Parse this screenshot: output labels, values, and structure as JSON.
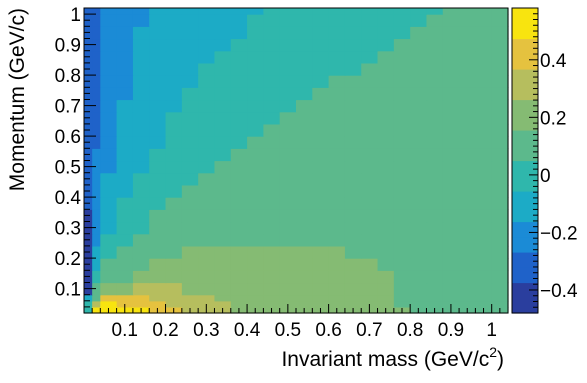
{
  "chart_data": {
    "type": "heatmap",
    "title": "",
    "xlabel": "Invariant mass (GeV/c",
    "xlabel_sup": "2",
    "xlabel_end": ")",
    "ylabel": "Momentum (GeV/c)",
    "x_ticks": [
      "0.1",
      "0.2",
      "0.3",
      "0.4",
      "0.5",
      "0.6",
      "0.7",
      "0.8",
      "0.9",
      "1"
    ],
    "y_ticks": [
      "0.1",
      "0.2",
      "0.3",
      "0.4",
      "0.5",
      "0.6",
      "0.7",
      "0.8",
      "0.9",
      "1"
    ],
    "colorbar_ticks": [
      "0.4",
      "0.2",
      "0",
      "−0.2",
      "−0.4"
    ],
    "xlim": [
      0,
      1.04
    ],
    "ylim": [
      0.02,
      1.02
    ],
    "zlim": [
      -0.48,
      0.58
    ],
    "colorbar_position": "right",
    "grid": false,
    "x_bin_edges": [
      0,
      0.02,
      0.04,
      0.08,
      0.12,
      0.16,
      0.2,
      0.24,
      0.28,
      0.32,
      0.36,
      0.4,
      0.44,
      0.48,
      0.52,
      0.56,
      0.6,
      0.64,
      0.68,
      0.72,
      0.76,
      0.8,
      0.84,
      0.88,
      0.92,
      0.96,
      1.0,
      1.04
    ],
    "y_bin_edges": [
      0.02,
      0.04,
      0.06,
      0.08,
      0.12,
      0.16,
      0.2,
      0.24,
      0.28,
      0.32,
      0.36,
      0.4,
      0.44,
      0.48,
      0.52,
      0.56,
      0.6,
      0.64,
      0.68,
      0.72,
      0.76,
      0.8,
      0.84,
      0.88,
      0.92,
      0.96,
      1.0,
      1.02
    ],
    "z": [
      [
        0.0,
        0.55,
        0.56,
        0.52,
        0.48,
        0.45,
        0.4,
        0.36,
        0.32,
        0.28,
        0.26,
        0.24,
        0.22,
        0.2,
        0.2,
        0.19,
        0.18,
        0.17,
        0.17,
        0.16,
        0.16,
        0.15,
        0.15,
        0.15,
        0.14,
        0.14,
        0.14
      ],
      [
        -0.05,
        0.3,
        0.5,
        0.45,
        0.42,
        0.4,
        0.36,
        0.33,
        0.3,
        0.27,
        0.25,
        0.23,
        0.21,
        0.2,
        0.19,
        0.18,
        0.17,
        0.17,
        0.16,
        0.16,
        0.15,
        0.15,
        0.15,
        0.14,
        0.14,
        0.14,
        0.14
      ],
      [
        -0.1,
        0.15,
        0.38,
        0.4,
        0.38,
        0.36,
        0.33,
        0.3,
        0.28,
        0.26,
        0.24,
        0.22,
        0.21,
        0.2,
        0.19,
        0.18,
        0.17,
        0.17,
        0.16,
        0.16,
        0.15,
        0.15,
        0.15,
        0.14,
        0.14,
        0.14,
        0.14
      ],
      [
        -0.4,
        0.05,
        0.2,
        0.25,
        0.28,
        0.28,
        0.27,
        0.26,
        0.25,
        0.24,
        0.23,
        0.22,
        0.21,
        0.2,
        0.19,
        0.18,
        0.17,
        0.17,
        0.16,
        0.16,
        0.15,
        0.15,
        0.15,
        0.14,
        0.14,
        0.14,
        0.14
      ],
      [
        -0.45,
        -0.05,
        0.1,
        0.15,
        0.2,
        0.22,
        0.22,
        0.22,
        0.22,
        0.22,
        0.21,
        0.2,
        0.2,
        0.19,
        0.19,
        0.18,
        0.17,
        0.17,
        0.16,
        0.16,
        0.15,
        0.15,
        0.15,
        0.14,
        0.14,
        0.14,
        0.14
      ],
      [
        -0.45,
        -0.1,
        0.05,
        0.1,
        0.15,
        0.17,
        0.18,
        0.19,
        0.2,
        0.2,
        0.19,
        0.19,
        0.18,
        0.18,
        0.18,
        0.17,
        0.17,
        0.16,
        0.16,
        0.15,
        0.15,
        0.15,
        0.14,
        0.14,
        0.14,
        0.14,
        0.13
      ],
      [
        -0.45,
        -0.15,
        0.0,
        0.06,
        0.1,
        0.13,
        0.15,
        0.16,
        0.17,
        0.17,
        0.17,
        0.17,
        0.17,
        0.17,
        0.16,
        0.16,
        0.16,
        0.15,
        0.15,
        0.15,
        0.14,
        0.14,
        0.14,
        0.14,
        0.13,
        0.13,
        0.13
      ],
      [
        -0.45,
        -0.18,
        -0.04,
        0.03,
        0.07,
        0.1,
        0.12,
        0.13,
        0.14,
        0.15,
        0.15,
        0.15,
        0.15,
        0.15,
        0.15,
        0.15,
        0.15,
        0.14,
        0.14,
        0.14,
        0.14,
        0.13,
        0.13,
        0.13,
        0.13,
        0.12,
        0.12
      ],
      [
        -0.42,
        -0.2,
        -0.07,
        0.0,
        0.04,
        0.07,
        0.09,
        0.11,
        0.12,
        0.13,
        0.13,
        0.13,
        0.13,
        0.13,
        0.13,
        0.13,
        0.13,
        0.13,
        0.13,
        0.13,
        0.12,
        0.12,
        0.12,
        0.12,
        0.12,
        0.11,
        0.11
      ],
      [
        -0.38,
        -0.22,
        -0.1,
        -0.03,
        0.02,
        0.05,
        0.07,
        0.09,
        0.1,
        0.11,
        0.12,
        0.12,
        0.12,
        0.12,
        0.12,
        0.12,
        0.12,
        0.12,
        0.12,
        0.12,
        0.11,
        0.11,
        0.11,
        0.11,
        0.11,
        0.1,
        0.1
      ],
      [
        -0.34,
        -0.24,
        -0.12,
        -0.05,
        -0.01,
        0.03,
        0.05,
        0.07,
        0.08,
        0.09,
        0.1,
        0.11,
        0.11,
        0.11,
        0.11,
        0.11,
        0.11,
        0.11,
        0.11,
        0.11,
        0.1,
        0.1,
        0.1,
        0.1,
        0.1,
        0.1,
        0.1
      ],
      [
        -0.32,
        -0.25,
        -0.14,
        -0.07,
        -0.03,
        0.01,
        0.03,
        0.05,
        0.06,
        0.07,
        0.08,
        0.09,
        0.1,
        0.1,
        0.1,
        0.1,
        0.1,
        0.1,
        0.1,
        0.1,
        0.1,
        0.09,
        0.09,
        0.09,
        0.09,
        0.09,
        0.09
      ],
      [
        -0.3,
        -0.25,
        -0.16,
        -0.09,
        -0.05,
        -0.01,
        0.01,
        0.03,
        0.05,
        0.06,
        0.07,
        0.08,
        0.09,
        0.09,
        0.09,
        0.09,
        0.09,
        0.09,
        0.09,
        0.09,
        0.09,
        0.09,
        0.09,
        0.09,
        0.09,
        0.09,
        0.09
      ],
      [
        -0.3,
        -0.26,
        -0.17,
        -0.11,
        -0.06,
        -0.03,
        0.0,
        0.02,
        0.03,
        0.05,
        0.06,
        0.07,
        0.08,
        0.08,
        0.08,
        0.08,
        0.08,
        0.08,
        0.08,
        0.08,
        0.08,
        0.08,
        0.08,
        0.08,
        0.08,
        0.08,
        0.08
      ],
      [
        -0.3,
        -0.26,
        -0.18,
        -0.12,
        -0.08,
        -0.04,
        -0.01,
        0.0,
        0.02,
        0.03,
        0.05,
        0.06,
        0.07,
        0.07,
        0.08,
        0.08,
        0.08,
        0.08,
        0.08,
        0.08,
        0.08,
        0.08,
        0.08,
        0.08,
        0.08,
        0.08,
        0.08
      ],
      [
        -0.3,
        -0.27,
        -0.19,
        -0.13,
        -0.09,
        -0.06,
        -0.03,
        -0.01,
        0.01,
        0.02,
        0.03,
        0.05,
        0.06,
        0.06,
        0.07,
        0.07,
        0.07,
        0.07,
        0.07,
        0.07,
        0.07,
        0.07,
        0.07,
        0.07,
        0.07,
        0.07,
        0.07
      ],
      [
        -0.3,
        -0.27,
        -0.2,
        -0.14,
        -0.1,
        -0.07,
        -0.04,
        -0.02,
        0.0,
        0.01,
        0.02,
        0.04,
        0.05,
        0.06,
        0.06,
        0.07,
        0.07,
        0.07,
        0.07,
        0.07,
        0.07,
        0.07,
        0.07,
        0.07,
        0.07,
        0.07,
        0.07
      ],
      [
        -0.3,
        -0.28,
        -0.21,
        -0.15,
        -0.11,
        -0.08,
        -0.05,
        -0.03,
        -0.01,
        0.0,
        0.01,
        0.03,
        0.04,
        0.05,
        0.06,
        0.06,
        0.06,
        0.06,
        0.06,
        0.06,
        0.06,
        0.06,
        0.06,
        0.06,
        0.06,
        0.06,
        0.06
      ],
      [
        -0.3,
        -0.28,
        -0.21,
        -0.16,
        -0.12,
        -0.09,
        -0.06,
        -0.04,
        -0.02,
        -0.01,
        0.0,
        0.02,
        0.03,
        0.04,
        0.05,
        0.05,
        0.06,
        0.06,
        0.06,
        0.06,
        0.06,
        0.06,
        0.06,
        0.06,
        0.06,
        0.06,
        0.06
      ],
      [
        -0.3,
        -0.28,
        -0.22,
        -0.17,
        -0.13,
        -0.1,
        -0.07,
        -0.05,
        -0.03,
        -0.02,
        -0.01,
        0.01,
        0.02,
        0.03,
        0.04,
        0.05,
        0.05,
        0.05,
        0.05,
        0.05,
        0.05,
        0.05,
        0.05,
        0.05,
        0.05,
        0.05,
        0.05
      ],
      [
        -0.3,
        -0.29,
        -0.22,
        -0.17,
        -0.14,
        -0.11,
        -0.08,
        -0.06,
        -0.04,
        -0.03,
        -0.02,
        0.0,
        0.01,
        0.02,
        0.03,
        0.04,
        0.05,
        0.05,
        0.05,
        0.05,
        0.05,
        0.05,
        0.05,
        0.05,
        0.05,
        0.05,
        0.05
      ],
      [
        -0.3,
        -0.29,
        -0.23,
        -0.18,
        -0.15,
        -0.12,
        -0.09,
        -0.07,
        -0.05,
        -0.04,
        -0.03,
        -0.01,
        0.0,
        0.01,
        0.02,
        0.03,
        0.04,
        0.04,
        0.05,
        0.05,
        0.05,
        0.05,
        0.05,
        0.05,
        0.05,
        0.05,
        0.05
      ],
      [
        -0.3,
        -0.29,
        -0.23,
        -0.19,
        -0.15,
        -0.13,
        -0.1,
        -0.08,
        -0.06,
        -0.05,
        -0.04,
        -0.02,
        -0.01,
        0.0,
        0.01,
        0.02,
        0.03,
        0.04,
        0.04,
        0.05,
        0.05,
        0.05,
        0.05,
        0.05,
        0.05,
        0.05,
        0.05
      ],
      [
        -0.3,
        -0.29,
        -0.24,
        -0.19,
        -0.16,
        -0.13,
        -0.11,
        -0.09,
        -0.07,
        -0.06,
        -0.05,
        -0.03,
        -0.02,
        -0.01,
        0.0,
        0.01,
        0.02,
        0.03,
        0.04,
        0.04,
        0.05,
        0.05,
        0.05,
        0.05,
        0.05,
        0.05,
        0.05
      ],
      [
        -0.3,
        -0.3,
        -0.24,
        -0.2,
        -0.16,
        -0.14,
        -0.12,
        -0.1,
        -0.08,
        -0.07,
        -0.06,
        -0.04,
        -0.03,
        -0.02,
        -0.01,
        0.0,
        0.01,
        0.02,
        0.03,
        0.04,
        0.04,
        0.05,
        0.05,
        0.05,
        0.05,
        0.05,
        0.05
      ],
      [
        -0.3,
        -0.3,
        -0.25,
        -0.2,
        -0.17,
        -0.15,
        -0.13,
        -0.11,
        -0.09,
        -0.08,
        -0.07,
        -0.05,
        -0.04,
        -0.03,
        -0.02,
        -0.01,
        0.0,
        0.01,
        0.02,
        0.03,
        0.04,
        0.04,
        0.05,
        0.05,
        0.05,
        0.05,
        0.1
      ],
      [
        -0.3,
        -0.3,
        -0.25,
        -0.21,
        -0.17,
        -0.15,
        -0.13,
        -0.11,
        -0.1,
        -0.09,
        -0.08,
        -0.06,
        -0.05,
        -0.04,
        -0.03,
        -0.02,
        -0.01,
        0.0,
        0.01,
        0.02,
        0.03,
        0.04,
        0.04,
        0.05,
        0.05,
        0.05,
        0.05
      ]
    ],
    "palette": [
      "#2a3e9e",
      "#1f62c9",
      "#1b8bd6",
      "#1cabc6",
      "#2fb7ac",
      "#5cb98c",
      "#85bb73",
      "#b6be5e",
      "#e5c23f",
      "#f8e40f"
    ]
  }
}
